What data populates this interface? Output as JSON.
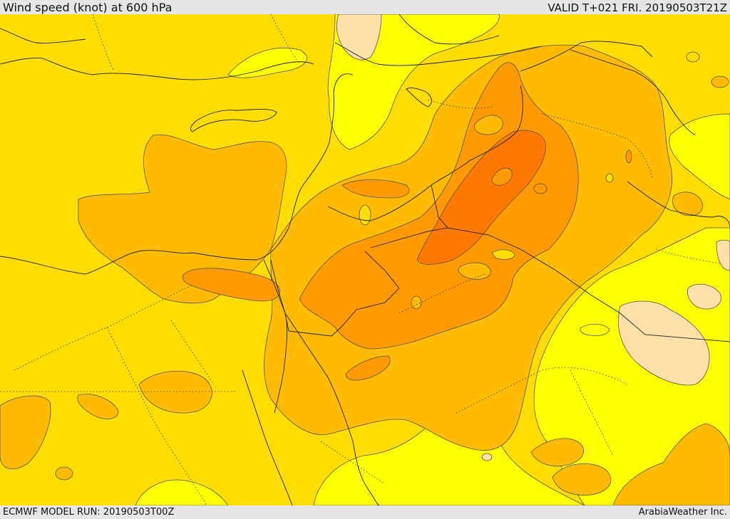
{
  "header": {
    "title": "Wind speed (knot) at 600 hPa",
    "valid": "VALID T+021 FRI. 20190503T21Z"
  },
  "footer": {
    "model_run": "ECMWF MODEL RUN: 20190503T00Z",
    "credit": "ArabiaWeather Inc."
  },
  "map": {
    "colors": {
      "lightest": "#ffe0a8",
      "yellow": "#ffff00",
      "gold": "#ffdd00",
      "amber": "#ffbb00",
      "orange": "#ff9a00",
      "dark_orange": "#ff7800",
      "contour": "#555555",
      "border": "#222222"
    }
  }
}
